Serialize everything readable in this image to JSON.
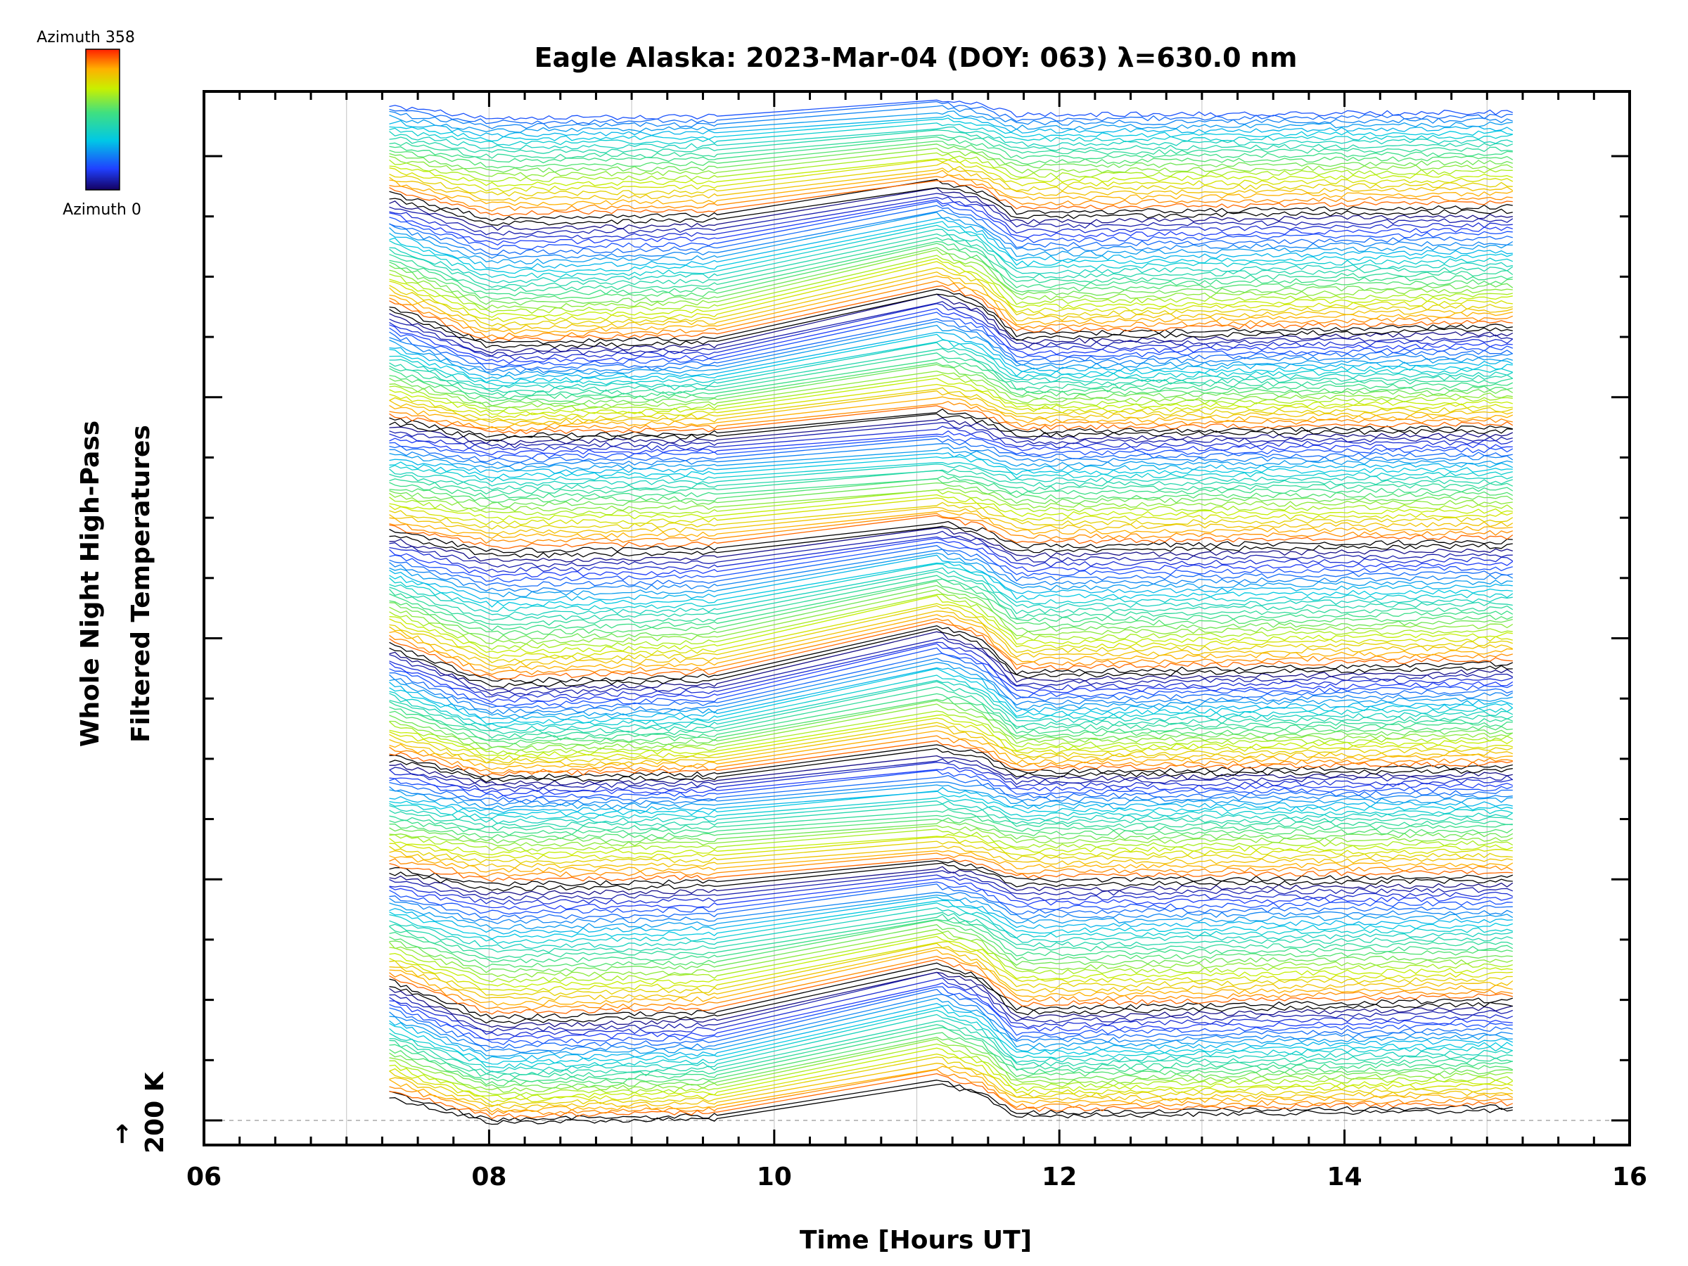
{
  "chart_data": {
    "type": "line",
    "title": "Eagle Alaska: 2023-Mar-04 (DOY: 063) λ=630.0 nm",
    "xlabel": "Time [Hours UT]",
    "ylabel": [
      "Whole Night High-Pass",
      "Filtered Temperatures"
    ],
    "xlim": [
      6,
      16
    ],
    "x_tick_labels": [
      "06",
      "08",
      "10",
      "12",
      "14",
      "16"
    ],
    "x_tick_values": [
      6,
      8,
      10,
      12,
      14,
      16
    ],
    "y_reference_label": "200 K",
    "y_reference_arrow": "→",
    "colorbar": {
      "top_label": "Azimuth 358",
      "bottom_label": "Azimuth 0",
      "min": 0,
      "max": 358,
      "colormap": "rainbow (blue to red)"
    },
    "data_start_hour": 7.3,
    "data_end_hour": 15.2,
    "gap": [
      9.6,
      11.1
    ],
    "n_traces": 248,
    "stack_groups": 9,
    "description_note": "Stacked high-pass filtered temperature traces, one per azimuth bin, offset vertically and colored by azimuth.",
    "colors": {
      "axis": "#000000",
      "grid": "#cccccc",
      "reference": "#999999"
    }
  }
}
